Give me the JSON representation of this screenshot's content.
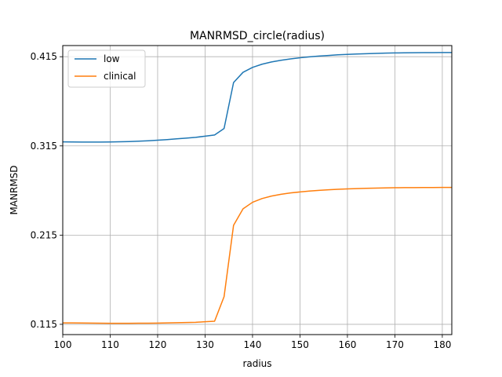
{
  "chart_data": {
    "type": "line",
    "title": "MANRMSD_circle(radius)",
    "xlabel": "radius",
    "ylabel": "MANRMSD",
    "xlim": [
      100,
      182
    ],
    "ylim": [
      0.1035,
      0.4275
    ],
    "xticks": [
      100,
      110,
      120,
      130,
      140,
      150,
      160,
      170,
      180
    ],
    "yticks": [
      0.115,
      0.215,
      0.315,
      0.415
    ],
    "ytick_labels": [
      "0.115",
      "0.215",
      "0.315",
      "0.415"
    ],
    "grid": true,
    "legend_position": "upper-left",
    "x": [
      100,
      102,
      104,
      106,
      108,
      110,
      112,
      114,
      116,
      118,
      120,
      122,
      124,
      126,
      128,
      130,
      132,
      134,
      136,
      138,
      140,
      142,
      144,
      146,
      148,
      150,
      152,
      154,
      156,
      158,
      160,
      162,
      164,
      166,
      168,
      170,
      172,
      174,
      176,
      178,
      180,
      182
    ],
    "series": [
      {
        "name": "low",
        "color": "#1f77b4",
        "values": [
          0.3195,
          0.3194,
          0.3193,
          0.3193,
          0.3193,
          0.3194,
          0.3196,
          0.3199,
          0.3203,
          0.3208,
          0.3214,
          0.3221,
          0.3229,
          0.3237,
          0.3246,
          0.3259,
          0.3272,
          0.3345,
          0.386,
          0.3975,
          0.403,
          0.4066,
          0.4091,
          0.411,
          0.4125,
          0.4138,
          0.4148,
          0.4157,
          0.4164,
          0.4171,
          0.4176,
          0.418,
          0.4184,
          0.4187,
          0.419,
          0.4192,
          0.4193,
          0.4195,
          0.4196,
          0.4196,
          0.4197,
          0.4197
        ]
      },
      {
        "name": "clinical",
        "color": "#ff7f0e",
        "values": [
          0.1166,
          0.1166,
          0.1165,
          0.1164,
          0.1163,
          0.1162,
          0.1162,
          0.1162,
          0.1163,
          0.1163,
          0.1164,
          0.1166,
          0.1168,
          0.117,
          0.1173,
          0.1179,
          0.1185,
          0.146,
          0.226,
          0.2445,
          0.2518,
          0.256,
          0.2588,
          0.2608,
          0.2623,
          0.2634,
          0.2644,
          0.2652,
          0.2658,
          0.2664,
          0.2668,
          0.2672,
          0.2675,
          0.2677,
          0.2679,
          0.2681,
          0.2682,
          0.2683,
          0.2684,
          0.2684,
          0.2685,
          0.2685
        ]
      }
    ]
  }
}
